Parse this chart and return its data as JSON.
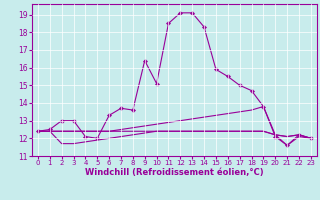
{
  "xlabel": "Windchill (Refroidissement éolien,°C)",
  "bg_color": "#c8ecec",
  "line_color": "#990099",
  "grid_color": "#ffffff",
  "xlim": [
    -0.5,
    23.5
  ],
  "ylim": [
    11,
    19.6
  ],
  "yticks": [
    11,
    12,
    13,
    14,
    15,
    16,
    17,
    18,
    19
  ],
  "xticks": [
    0,
    1,
    2,
    3,
    4,
    5,
    6,
    7,
    8,
    9,
    10,
    11,
    12,
    13,
    14,
    15,
    16,
    17,
    18,
    19,
    20,
    21,
    22,
    23
  ],
  "series": [
    {
      "y": [
        12.4,
        12.5,
        13.0,
        13.0,
        12.1,
        12.0,
        13.3,
        13.7,
        13.6,
        16.4,
        15.1,
        18.5,
        19.1,
        19.1,
        18.3,
        15.9,
        15.5,
        15.0,
        14.7,
        13.8,
        12.1,
        11.6,
        12.2,
        12.0
      ],
      "marker": true
    },
    {
      "y": [
        12.4,
        12.4,
        12.4,
        12.4,
        12.4,
        12.4,
        12.4,
        12.5,
        12.6,
        12.7,
        12.8,
        12.9,
        13.0,
        13.1,
        13.2,
        13.3,
        13.4,
        13.5,
        13.6,
        13.8,
        12.2,
        12.1,
        12.2,
        12.0
      ],
      "marker": false
    },
    {
      "y": [
        12.4,
        12.4,
        12.4,
        12.4,
        12.4,
        12.4,
        12.4,
        12.4,
        12.4,
        12.4,
        12.4,
        12.4,
        12.4,
        12.4,
        12.4,
        12.4,
        12.4,
        12.4,
        12.4,
        12.4,
        12.2,
        12.1,
        12.2,
        12.0
      ],
      "marker": false
    },
    {
      "y": [
        12.4,
        12.4,
        11.7,
        11.7,
        11.8,
        11.9,
        12.0,
        12.1,
        12.2,
        12.3,
        12.4,
        12.4,
        12.4,
        12.4,
        12.4,
        12.4,
        12.4,
        12.4,
        12.4,
        12.4,
        12.2,
        11.6,
        12.1,
        12.0
      ],
      "marker": false
    }
  ]
}
